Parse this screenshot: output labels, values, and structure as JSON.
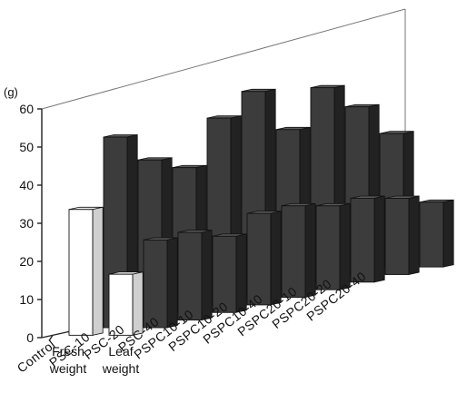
{
  "chart_data": {
    "type": "bar",
    "style": "3d-grouped-bars",
    "unit_label": "(g)",
    "y_ticks": [
      "0",
      "10",
      "20",
      "30",
      "40",
      "50",
      "60"
    ],
    "ylim": [
      0,
      60
    ],
    "series": [
      {
        "name": "Fresh weight",
        "name_lines": [
          "Fresh",
          "weight"
        ],
        "color": "#ffffff"
      },
      {
        "name": "Leaf weight",
        "name_lines": [
          "Leaf",
          "weight"
        ],
        "color": "#ffffff"
      }
    ],
    "categories": [
      "Control",
      "PSC-10",
      "PSC-20",
      "PSC-40",
      "PSPC10-10",
      "PSPC10-20",
      "PSPC10-40",
      "PSPC20-10",
      "PSPC20-20",
      "PSPC20-40"
    ],
    "values": {
      "Fresh weight": [
        33,
        50,
        42,
        38,
        49,
        54,
        42,
        51,
        44,
        35
      ],
      "Leaf weight": [
        16,
        23,
        23,
        20,
        24,
        24,
        22,
        22,
        20,
        17
      ]
    },
    "colors": {
      "highlight_bar": "#ffffff",
      "dark_bar": "#3c3c3c",
      "dark_bar_top": "#5a5a5a",
      "dark_bar_side": "#222222"
    },
    "grid": false
  }
}
